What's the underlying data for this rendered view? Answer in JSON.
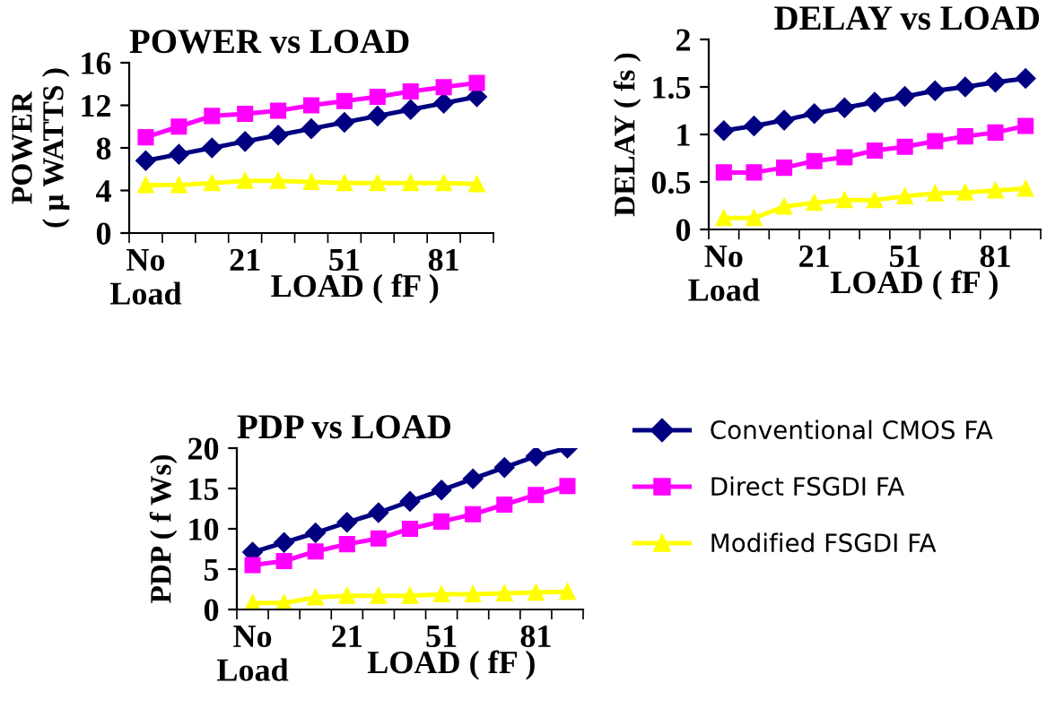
{
  "chart_data": [
    {
      "type": "line",
      "title": "POWER vs LOAD",
      "xlabel": "LOAD ( fF )",
      "ylabel": "POWER\n( μ WATTS )",
      "categories": [
        "No\nLoad",
        null,
        null,
        "21",
        null,
        null,
        "51",
        null,
        null,
        "81",
        null
      ],
      "ylim": [
        0,
        16
      ],
      "yticks": [
        0,
        4,
        8,
        12,
        16
      ],
      "grid": false,
      "legend": false,
      "series": [
        {
          "color": "#000080",
          "marker": "diamond",
          "values": [
            6.8,
            7.4,
            8.0,
            8.6,
            9.2,
            9.8,
            10.4,
            11.0,
            11.6,
            12.2,
            12.8
          ]
        },
        {
          "color": "#ff00ff",
          "marker": "square",
          "values": [
            9.0,
            10.0,
            11.0,
            11.2,
            11.5,
            12.0,
            12.4,
            12.8,
            13.3,
            13.7,
            14.1
          ]
        },
        {
          "color": "#ffff00",
          "marker": "triangle",
          "values": [
            4.5,
            4.5,
            4.7,
            4.9,
            4.9,
            4.8,
            4.7,
            4.7,
            4.7,
            4.7,
            4.6
          ]
        }
      ]
    },
    {
      "type": "line",
      "title": "DELAY vs LOAD",
      "xlabel": "LOAD ( fF )",
      "ylabel": "DELAY ( fs )",
      "categories": [
        "No\nLoad",
        null,
        null,
        "21",
        null,
        null,
        "51",
        null,
        null,
        "81",
        null
      ],
      "ylim": [
        0,
        2
      ],
      "yticks": [
        0,
        0.5,
        1,
        1.5,
        2
      ],
      "grid": false,
      "legend": false,
      "series": [
        {
          "color": "#000080",
          "marker": "diamond",
          "values": [
            1.04,
            1.09,
            1.15,
            1.22,
            1.28,
            1.34,
            1.4,
            1.46,
            1.5,
            1.55,
            1.59
          ]
        },
        {
          "color": "#ff00ff",
          "marker": "square",
          "values": [
            0.6,
            0.6,
            0.65,
            0.72,
            0.76,
            0.83,
            0.87,
            0.93,
            0.98,
            1.02,
            1.09
          ]
        },
        {
          "color": "#ffff00",
          "marker": "triangle",
          "values": [
            0.12,
            0.12,
            0.24,
            0.28,
            0.31,
            0.31,
            0.35,
            0.38,
            0.39,
            0.41,
            0.43
          ]
        }
      ]
    },
    {
      "type": "line",
      "title": "PDP vs LOAD",
      "xlabel": "LOAD ( fF )",
      "ylabel": "PDP ( f Ws)",
      "categories": [
        "No\nLoad",
        null,
        null,
        "21",
        null,
        null,
        "51",
        null,
        null,
        "81",
        null
      ],
      "ylim": [
        0,
        20
      ],
      "yticks": [
        0,
        5,
        10,
        15,
        20
      ],
      "grid": false,
      "legend": "right",
      "series": [
        {
          "name": "Conventional CMOS FA",
          "color": "#000080",
          "marker": "diamond",
          "values": [
            7.1,
            8.3,
            9.5,
            10.8,
            12.0,
            13.4,
            14.8,
            16.2,
            17.6,
            19.0,
            20.0
          ]
        },
        {
          "name": "Direct FSGDI FA",
          "color": "#ff00ff",
          "marker": "square",
          "values": [
            5.5,
            6.0,
            7.2,
            8.1,
            8.8,
            10.0,
            10.9,
            11.8,
            13.0,
            14.2,
            15.3
          ]
        },
        {
          "name": "Modified FSGDI FA",
          "color": "#ffff00",
          "marker": "triangle",
          "values": [
            0.8,
            0.8,
            1.5,
            1.7,
            1.7,
            1.7,
            1.9,
            1.9,
            2.0,
            2.1,
            2.2
          ]
        }
      ]
    }
  ]
}
